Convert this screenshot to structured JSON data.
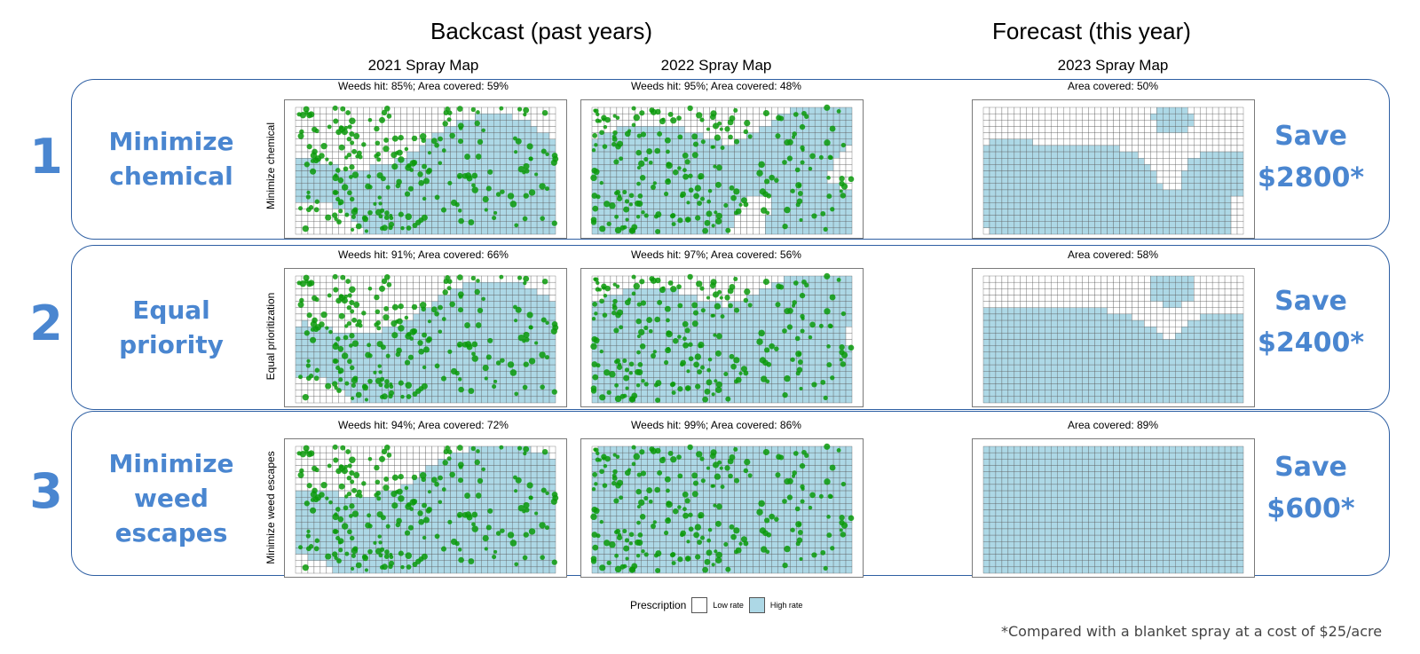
{
  "headers": {
    "backcast": "Backcast (past years)",
    "forecast": "Forecast (this year)",
    "col_2021": "2021 Spray Map",
    "col_2022": "2022 Spray Map",
    "col_2023": "2023 Spray Map"
  },
  "rows": [
    {
      "number": "1",
      "label_lines": [
        "Minimize",
        "chemical"
      ],
      "ylabel": "Minimize chemical",
      "map_2021_stat": "Weeds hit: 85%; Area covered: 59%",
      "map_2022_stat": "Weeds hit: 95%; Area covered: 48%",
      "map_2023_stat": "Area covered: 50%",
      "save_line1": "Save",
      "save_line2": "$2800*"
    },
    {
      "number": "2",
      "label_lines": [
        "Equal",
        "priority"
      ],
      "ylabel": "Equal prioritization",
      "map_2021_stat": "Weeds hit: 91%; Area covered: 66%",
      "map_2022_stat": "Weeds hit: 97%; Area covered: 56%",
      "map_2023_stat": "Area covered: 58%",
      "save_line1": "Save",
      "save_line2": "$2400*"
    },
    {
      "number": "3",
      "label_lines": [
        "Minimize",
        "weed",
        "escapes"
      ],
      "ylabel": "Minimize weed escapes",
      "map_2021_stat": "Weeds hit: 94%; Area covered: 72%",
      "map_2022_stat": "Weeds hit: 99%; Area covered: 86%",
      "map_2023_stat": "Area covered: 89%",
      "save_line1": "Save",
      "save_line2": "$600*"
    }
  ],
  "legend": {
    "title": "Prescription",
    "low": "Low rate",
    "high": "High rate"
  },
  "footnote": "*Compared with a blanket spray at a cost of $25/acre",
  "colors": {
    "accent_blue": "#4a86d0",
    "frame_blue": "#2e5fa3",
    "high_rate": "#add8e6",
    "low_rate": "#ffffff",
    "weed_green": "#0a9a0a"
  }
}
